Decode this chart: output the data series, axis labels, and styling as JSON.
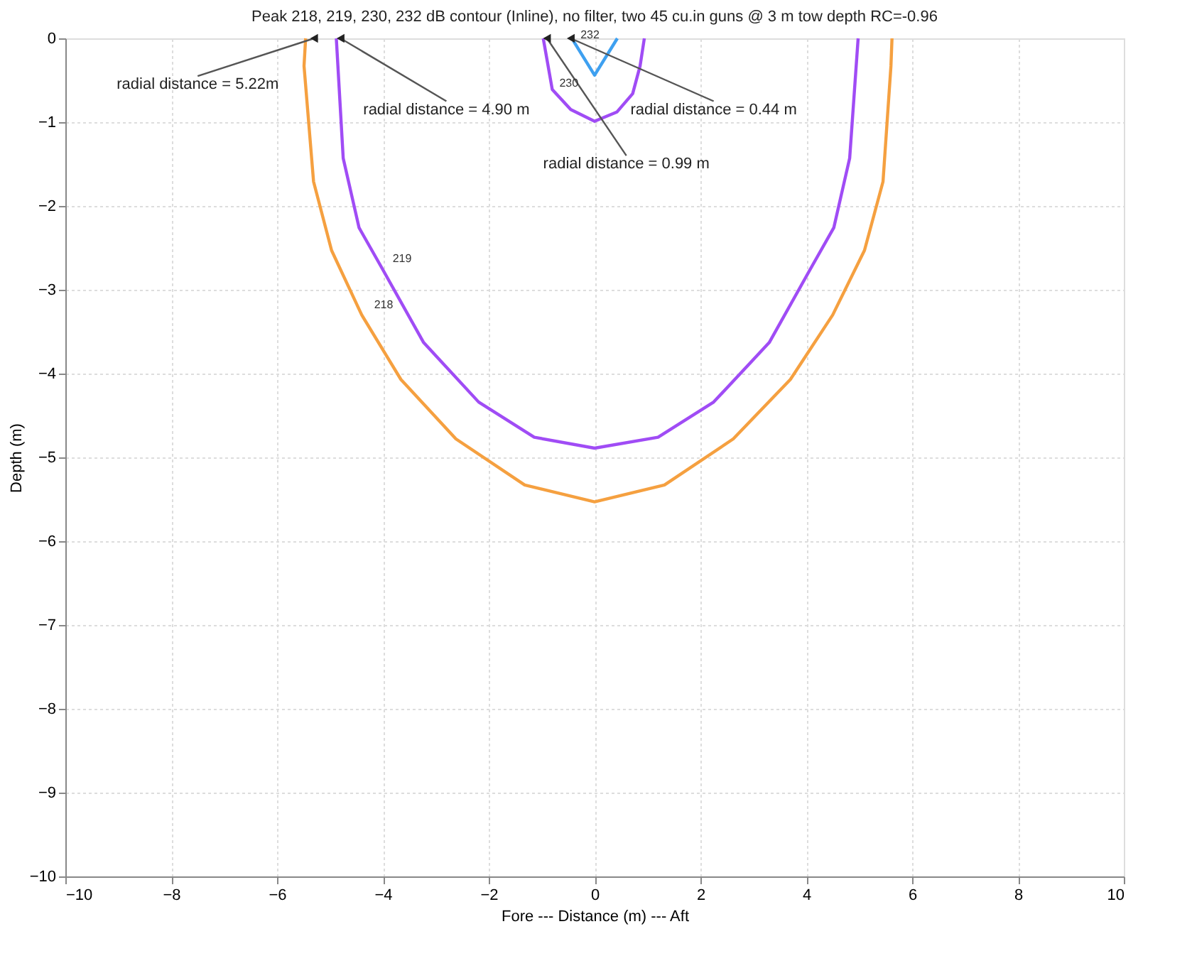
{
  "chart_data": {
    "type": "line",
    "title": "Peak 218, 219, 230, 232 dB contour (Inline), no filter,  two 45 cu.in guns @ 3 m  tow depth RC=-0.96",
    "xlabel": "Fore --- Distance (m) --- Aft",
    "ylabel": "Depth (m)",
    "xlim": [
      -10,
      10
    ],
    "ylim": [
      -10,
      0
    ],
    "xticks": [
      -10,
      -8,
      -6,
      -4,
      -2,
      0,
      2,
      4,
      6,
      8,
      10
    ],
    "yticks": [
      0,
      -1,
      -2,
      -3,
      -4,
      -5,
      -6,
      -7,
      -8,
      -9,
      -10
    ],
    "grid": true,
    "marker": "none",
    "line_style": "solid",
    "series": [
      {
        "color": "#f5a040",
        "x": [
          -5.46,
          -5.49,
          -5.31,
          -4.97,
          -4.4,
          -3.66,
          -2.62,
          -1.32,
          0,
          1.32,
          2.62,
          3.7,
          4.5,
          5.1,
          5.45,
          5.6,
          5.62
        ],
        "values": [
          0,
          -0.33,
          -1.71,
          -2.53,
          -3.3,
          -4.07,
          -4.78,
          -5.33,
          -5.53,
          -5.33,
          -4.78,
          -4.07,
          -3.3,
          -2.53,
          -1.71,
          -0.33,
          0
        ]
      },
      {
        "color": "#a04cf5",
        "x": [
          -4.88,
          -4.75,
          -4.45,
          -4.01,
          -3.23,
          -2.19,
          -1.14,
          0,
          1.2,
          2.25,
          3.3,
          4.08,
          4.52,
          4.82,
          4.98
        ],
        "values": [
          0,
          -1.43,
          -2.26,
          -2.75,
          -3.63,
          -4.34,
          -4.76,
          -4.89,
          -4.76,
          -4.34,
          -3.63,
          -2.75,
          -2.26,
          -1.43,
          0
        ]
      },
      {
        "color": "#a04cf5",
        "x": [
          -0.97,
          -0.8,
          -0.45,
          0,
          0.42,
          0.72,
          0.86,
          0.94
        ],
        "values": [
          0,
          -0.61,
          -0.85,
          -0.99,
          -0.88,
          -0.66,
          -0.33,
          0
        ]
      },
      {
        "color": "#3ea0f0",
        "x": [
          -0.4,
          0,
          0.43
        ],
        "values": [
          -0.03,
          -0.44,
          0
        ]
      }
    ],
    "annotations": [
      {
        "text": "radial distance = 5.22m",
        "x": -5.3,
        "y": 0
      },
      {
        "text": "radial distance = 4.90 m",
        "x": -4.8,
        "y": 0
      },
      {
        "text": "radial distance = 0.99 m",
        "x": -0.9,
        "y": 0
      },
      {
        "text": "radial distance = 0.44 m",
        "x": -0.45,
        "y": 0
      },
      {
        "text": "218",
        "x": -4.3,
        "y": -3.25
      },
      {
        "text": "219",
        "x": -3.95,
        "y": -2.7
      },
      {
        "text": "230",
        "x": -0.8,
        "y": -0.61
      },
      {
        "text": "232",
        "x": -0.4,
        "y": -0.03
      }
    ]
  }
}
